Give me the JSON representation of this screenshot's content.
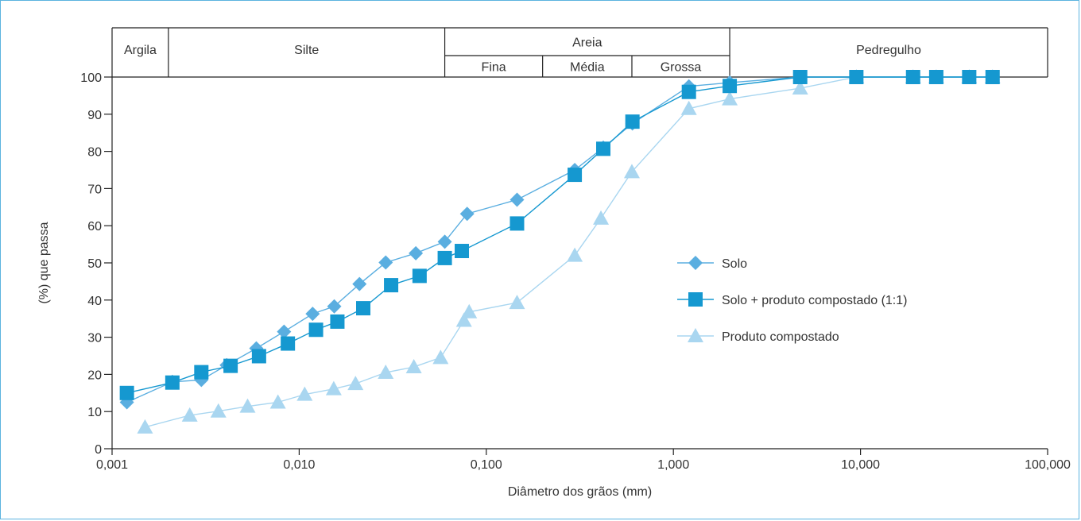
{
  "chart_data": {
    "type": "scatter",
    "xlabel": "Diâmetro dos grãos (mm)",
    "ylabel": "(%) que passa",
    "x_scale": "log",
    "xlim": [
      0.001,
      100
    ],
    "ylim": [
      0,
      100
    ],
    "x_ticks": [
      {
        "value": 0.001,
        "label": "0,001"
      },
      {
        "value": 0.01,
        "label": "0,010"
      },
      {
        "value": 0.1,
        "label": "0,100"
      },
      {
        "value": 1,
        "label": "1,000"
      },
      {
        "value": 10,
        "label": "10,000"
      },
      {
        "value": 100,
        "label": "100,000"
      }
    ],
    "y_ticks": [
      0,
      10,
      20,
      30,
      40,
      50,
      60,
      70,
      80,
      90,
      100
    ],
    "grid": false,
    "legend_position": "right-center",
    "classification": [
      {
        "label": "Argila",
        "from": 0.001,
        "to": 0.002
      },
      {
        "label": "Silte",
        "from": 0.002,
        "to": 0.06
      },
      {
        "label": "Areia",
        "from": 0.06,
        "to": 2.0,
        "subdivisions": [
          {
            "label": "Fina",
            "from": 0.06,
            "to": 0.2
          },
          {
            "label": "Média",
            "from": 0.2,
            "to": 0.6
          },
          {
            "label": "Grossa",
            "from": 0.6,
            "to": 2.0
          }
        ]
      },
      {
        "label": "Pedregulho",
        "from": 2.0,
        "to": 100
      }
    ],
    "series": [
      {
        "name": "Solo",
        "marker": "diamond",
        "color": "#5aaee0",
        "points": [
          [
            0.0012,
            12.5
          ],
          [
            0.0021,
            18
          ],
          [
            0.003,
            18.5
          ],
          [
            0.0041,
            22.5
          ],
          [
            0.0059,
            27
          ],
          [
            0.0083,
            31.5
          ],
          [
            0.0118,
            36.3
          ],
          [
            0.0154,
            38.3
          ],
          [
            0.021,
            44.3
          ],
          [
            0.029,
            50.1
          ],
          [
            0.042,
            52.6
          ],
          [
            0.06,
            55.7
          ],
          [
            0.079,
            63.2
          ],
          [
            0.146,
            67
          ],
          [
            0.297,
            75
          ],
          [
            0.422,
            81
          ],
          [
            0.604,
            87.5
          ],
          [
            1.21,
            97.5
          ],
          [
            2.0,
            98.5
          ],
          [
            4.76,
            100
          ],
          [
            9.5,
            100
          ],
          [
            19.1,
            100
          ],
          [
            25.4,
            100
          ],
          [
            38.1,
            100
          ],
          [
            50.8,
            100
          ]
        ]
      },
      {
        "name": "Solo +  produto compostado (1:1)",
        "marker": "square",
        "color": "#1598d0",
        "points": [
          [
            0.0012,
            15
          ],
          [
            0.0021,
            17.8
          ],
          [
            0.003,
            20.6
          ],
          [
            0.0043,
            22.3
          ],
          [
            0.0061,
            24.9
          ],
          [
            0.0087,
            28.3
          ],
          [
            0.0123,
            32
          ],
          [
            0.016,
            34.2
          ],
          [
            0.022,
            37.8
          ],
          [
            0.031,
            44
          ],
          [
            0.044,
            46.5
          ],
          [
            0.06,
            51.3
          ],
          [
            0.074,
            53.2
          ],
          [
            0.146,
            60.6
          ],
          [
            0.297,
            73.7
          ],
          [
            0.422,
            80.7
          ],
          [
            0.604,
            88
          ],
          [
            1.21,
            96
          ],
          [
            2.0,
            97.6
          ],
          [
            4.76,
            100
          ],
          [
            9.5,
            100
          ],
          [
            19.1,
            100
          ],
          [
            25.4,
            100
          ],
          [
            38.1,
            100
          ],
          [
            50.8,
            100
          ]
        ]
      },
      {
        "name": "Produto compostado",
        "marker": "triangle",
        "color": "#a9d6f0",
        "points": [
          [
            0.0015,
            5.8
          ],
          [
            0.0026,
            9
          ],
          [
            0.0037,
            10.1
          ],
          [
            0.0053,
            11.4
          ],
          [
            0.0077,
            12.5
          ],
          [
            0.0107,
            14.6
          ],
          [
            0.0153,
            16.1
          ],
          [
            0.02,
            17.5
          ],
          [
            0.029,
            20.5
          ],
          [
            0.041,
            22
          ],
          [
            0.057,
            24.5
          ],
          [
            0.076,
            34.5
          ],
          [
            0.081,
            36.8
          ],
          [
            0.146,
            39.3
          ],
          [
            0.297,
            52
          ],
          [
            0.41,
            62
          ],
          [
            0.6,
            74.5
          ],
          [
            1.21,
            91.5
          ],
          [
            2.0,
            94.1
          ],
          [
            4.76,
            97
          ],
          [
            9.5,
            100
          ],
          [
            19.1,
            100
          ],
          [
            25.4,
            100
          ],
          [
            38.1,
            100
          ],
          [
            50.8,
            100
          ]
        ]
      }
    ]
  }
}
